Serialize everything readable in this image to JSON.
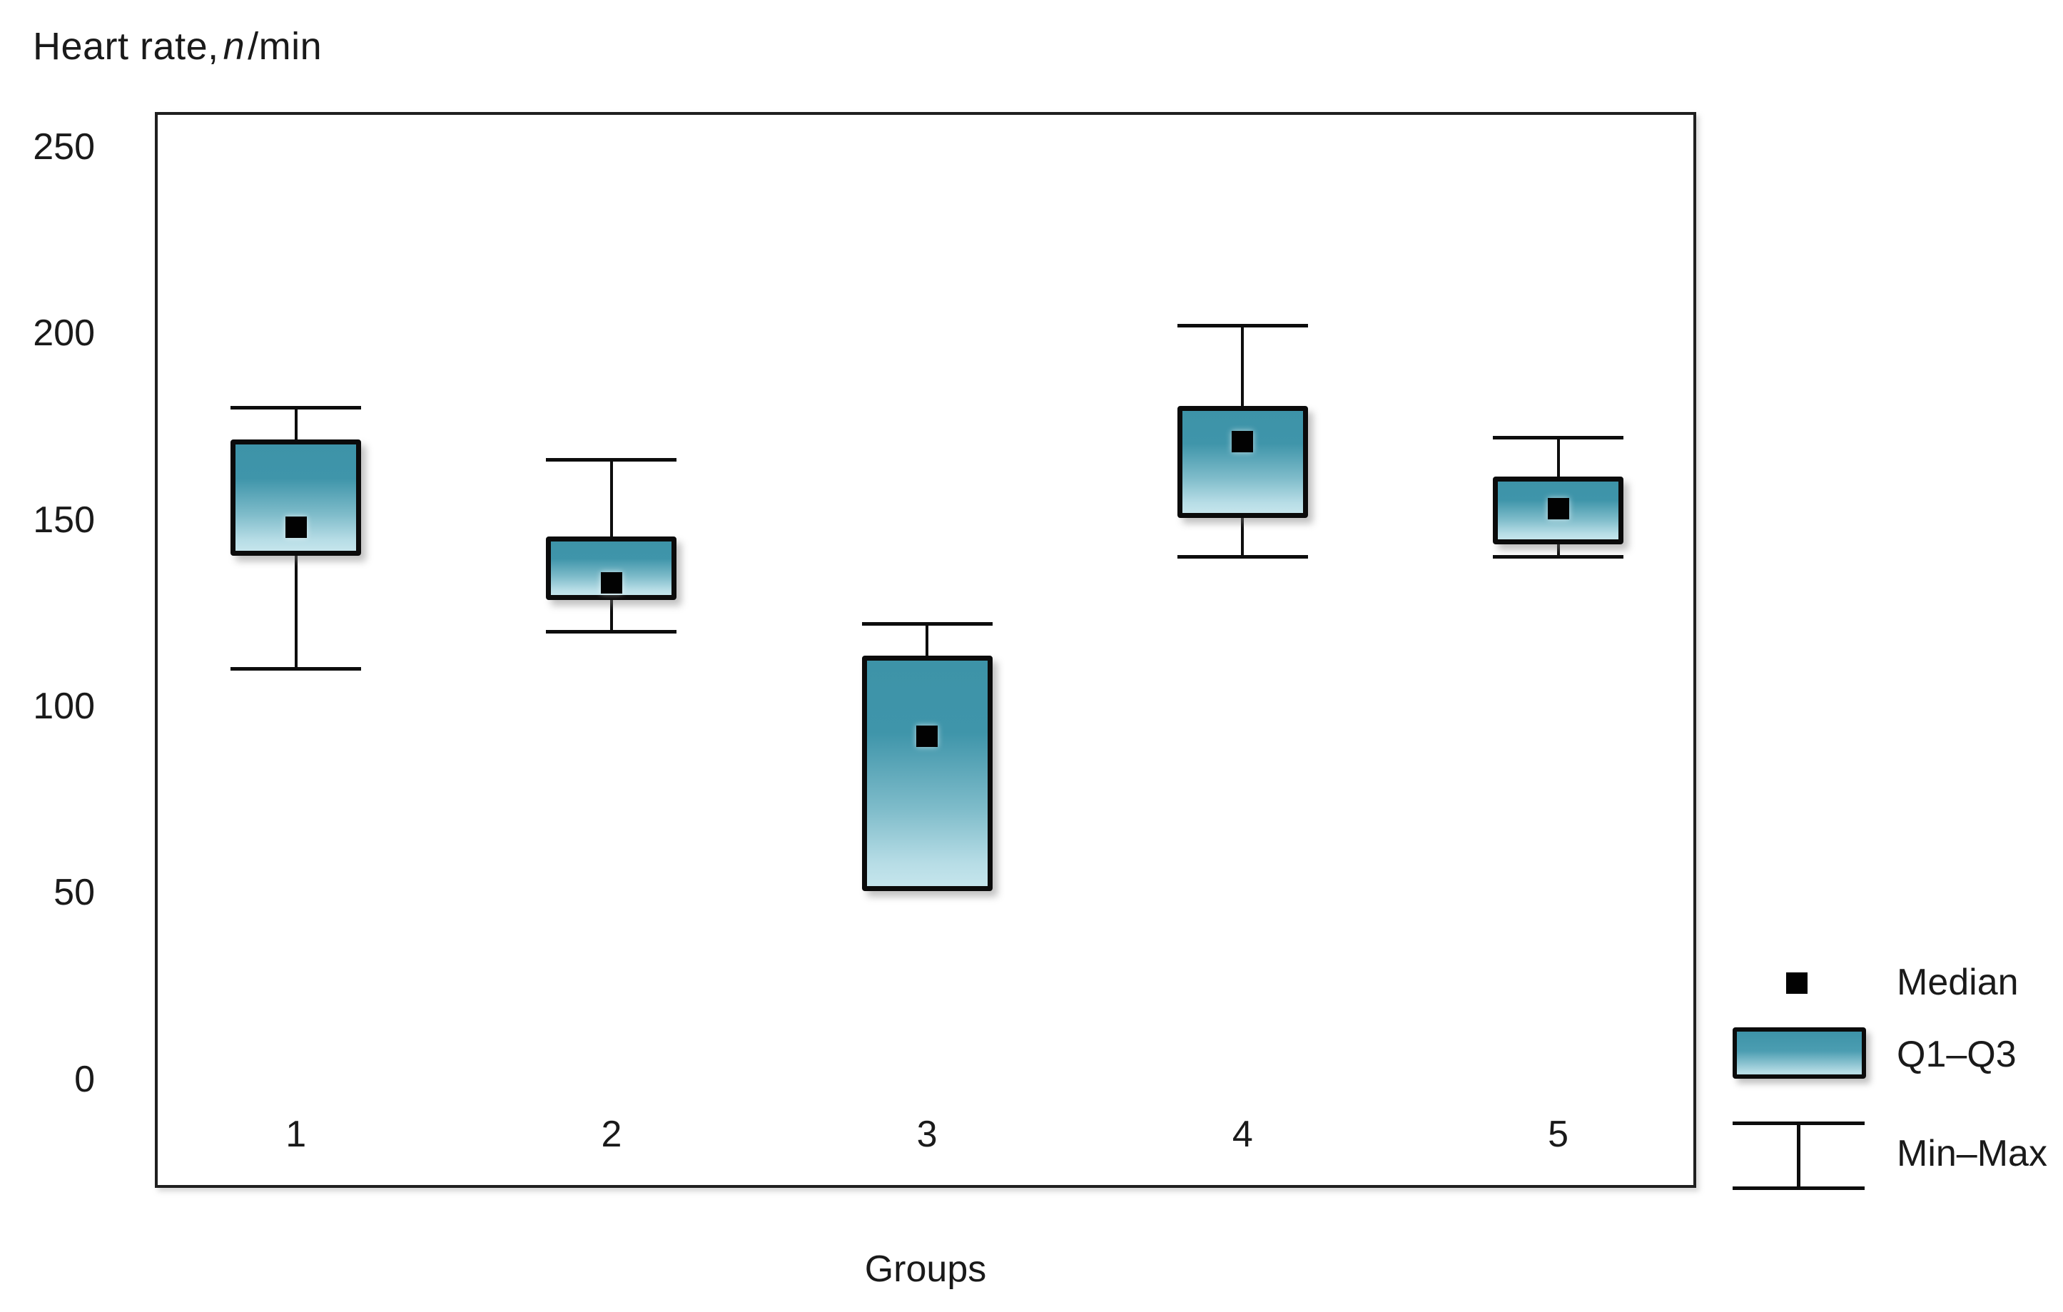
{
  "title": {
    "prefix": "Heart rate,",
    "variable": "n",
    "suffix": "/min"
  },
  "chart_data": {
    "type": "box",
    "title": "Heart rate, n/min",
    "ylabel": "Heart rate, n/min",
    "xlabel": "Groups",
    "categories": [
      "1",
      "2",
      "3",
      "4",
      "5"
    ],
    "y_ticks": [
      0,
      50,
      100,
      150,
      200,
      250
    ],
    "ylim": [
      -28.4,
      258.6
    ],
    "grid": false,
    "legend_position": "right-bottom",
    "series": [
      {
        "group": "1",
        "min": 110,
        "q1": 141,
        "median": 148,
        "q3": 171,
        "max": 180
      },
      {
        "group": "2",
        "min": 120,
        "q1": 129,
        "median": 133,
        "q3": 145,
        "max": 166
      },
      {
        "group": "3",
        "min": null,
        "q1": 51,
        "median": 92,
        "q3": 113,
        "max": 122
      },
      {
        "group": "4",
        "min": 140,
        "q1": 151,
        "median": 171,
        "q3": 180,
        "max": 202
      },
      {
        "group": "5",
        "min": 140,
        "q1": 144,
        "median": 153,
        "q3": 161,
        "max": 172
      }
    ],
    "legend": [
      {
        "marker": "median-square",
        "label": "Median"
      },
      {
        "marker": "q1q3-box",
        "label": "Q1–Q3"
      },
      {
        "marker": "minmax-whisker",
        "label": "Min–Max"
      }
    ],
    "colors": {
      "box_gradient_top": "#3D93A8",
      "box_gradient_bottom": "#C5E5EC",
      "box_border": "#0B0B0B",
      "median_marker": "#020202",
      "axis_border": "#1F1F1F",
      "text": "#1A1A1A"
    }
  }
}
